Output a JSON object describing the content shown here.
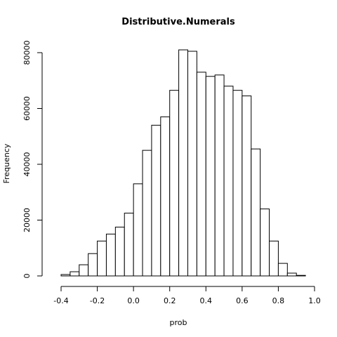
{
  "chart_data": {
    "type": "bar",
    "title": "Distributive.Numerals",
    "xlabel": "prob",
    "ylabel": "Frequency",
    "bin_width": 0.05,
    "bin_start": -0.4,
    "values": [
      500,
      1500,
      4000,
      8000,
      12500,
      15000,
      17500,
      22500,
      33000,
      45000,
      54000,
      57000,
      66500,
      81000,
      80500,
      73000,
      71500,
      72000,
      68000,
      66500,
      64500,
      45500,
      24000,
      12500,
      4500,
      1000,
      200
    ],
    "xlim": [
      -0.45,
      1.0
    ],
    "ylim": [
      0,
      82000
    ],
    "x_ticks": [
      -0.4,
      -0.2,
      0.0,
      0.2,
      0.4,
      0.6,
      0.8,
      1.0
    ],
    "x_tick_labels": [
      "-0.4",
      "-0.2",
      "0.0",
      "0.2",
      "0.4",
      "0.6",
      "0.8",
      "1.0"
    ],
    "y_ticks": [
      0,
      20000,
      40000,
      60000,
      80000
    ],
    "y_tick_labels": [
      "0",
      "20000",
      "40000",
      "60000",
      "80000"
    ],
    "bar_fill": "#ffffff",
    "bar_stroke": "#000000",
    "grid": false
  }
}
